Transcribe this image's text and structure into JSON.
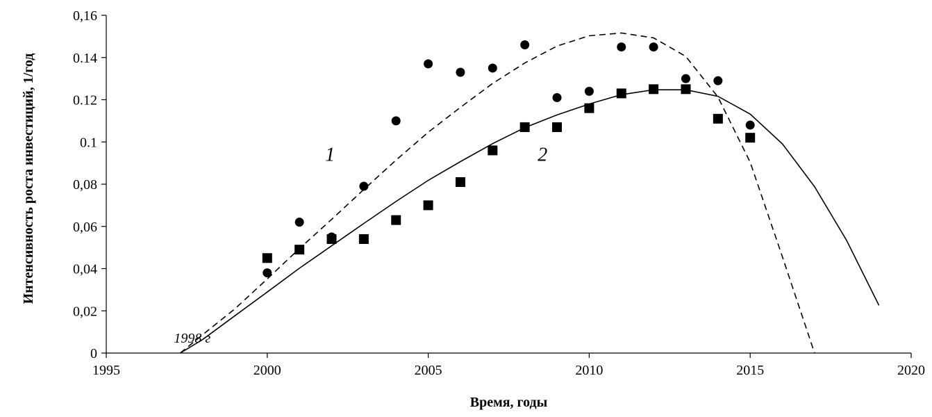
{
  "chart_data": {
    "type": "scatter",
    "xlabel": "Время, годы",
    "ylabel": "Интенсивность роста инвестиций, 1/год",
    "xlim": [
      1995,
      2020
    ],
    "ylim": [
      0,
      0.16
    ],
    "x_ticks": [
      1995,
      2000,
      2005,
      2010,
      2015,
      2020
    ],
    "x_tick_labels": [
      "1995",
      "2000",
      "2005",
      "2010",
      "2015",
      "2020"
    ],
    "y_ticks": [
      0,
      0.02,
      0.04,
      0.06,
      0.08,
      0.1,
      0.12,
      0.14,
      0.16
    ],
    "y_tick_labels": [
      "0",
      "0,02",
      "0,04",
      "0,06",
      "0,08",
      "0.1",
      "0.12",
      "0.14",
      "0,16"
    ],
    "grid": false,
    "legend": "none",
    "series": [
      {
        "marker": "circle",
        "color": "#000000",
        "points": [
          {
            "x": 2000,
            "y": 0.038
          },
          {
            "x": 2001,
            "y": 0.062
          },
          {
            "x": 2002,
            "y": 0.055
          },
          {
            "x": 2003,
            "y": 0.079
          },
          {
            "x": 2004,
            "y": 0.11
          },
          {
            "x": 2005,
            "y": 0.137
          },
          {
            "x": 2006,
            "y": 0.133
          },
          {
            "x": 2007,
            "y": 0.135
          },
          {
            "x": 2008,
            "y": 0.146
          },
          {
            "x": 2009,
            "y": 0.121
          },
          {
            "x": 2010,
            "y": 0.124
          },
          {
            "x": 2011,
            "y": 0.145
          },
          {
            "x": 2012,
            "y": 0.145
          },
          {
            "x": 2013,
            "y": 0.13
          },
          {
            "x": 2014,
            "y": 0.129
          },
          {
            "x": 2015,
            "y": 0.108
          }
        ]
      },
      {
        "marker": "square",
        "color": "#000000",
        "points": [
          {
            "x": 2000,
            "y": 0.045
          },
          {
            "x": 2001,
            "y": 0.049
          },
          {
            "x": 2002,
            "y": 0.054
          },
          {
            "x": 2003,
            "y": 0.054
          },
          {
            "x": 2004,
            "y": 0.063
          },
          {
            "x": 2005,
            "y": 0.07
          },
          {
            "x": 2006,
            "y": 0.081
          },
          {
            "x": 2007,
            "y": 0.096
          },
          {
            "x": 2008,
            "y": 0.107
          },
          {
            "x": 2009,
            "y": 0.107
          },
          {
            "x": 2010,
            "y": 0.116
          },
          {
            "x": 2011,
            "y": 0.123
          },
          {
            "x": 2012,
            "y": 0.125
          },
          {
            "x": 2013,
            "y": 0.125
          },
          {
            "x": 2014,
            "y": 0.111
          },
          {
            "x": 2015,
            "y": 0.102
          }
        ]
      }
    ],
    "curves": [
      {
        "label": "1",
        "style": "dashed",
        "color": "#000000",
        "points": [
          {
            "x": 1997.3,
            "y": 0
          },
          {
            "x": 1998,
            "y": 0.0088
          },
          {
            "x": 1999,
            "y": 0.021
          },
          {
            "x": 2000,
            "y": 0.0351
          },
          {
            "x": 2001,
            "y": 0.0495
          },
          {
            "x": 2002,
            "y": 0.0633
          },
          {
            "x": 2003,
            "y": 0.0775
          },
          {
            "x": 2004,
            "y": 0.0914
          },
          {
            "x": 2005,
            "y": 0.1046
          },
          {
            "x": 2006,
            "y": 0.1164
          },
          {
            "x": 2007,
            "y": 0.1277
          },
          {
            "x": 2008,
            "y": 0.1374
          },
          {
            "x": 2009,
            "y": 0.1454
          },
          {
            "x": 2010,
            "y": 0.1503
          },
          {
            "x": 2011,
            "y": 0.1516
          },
          {
            "x": 2012,
            "y": 0.1493
          },
          {
            "x": 2013,
            "y": 0.1405
          },
          {
            "x": 2014,
            "y": 0.1213
          },
          {
            "x": 2015,
            "y": 0.0904
          },
          {
            "x": 2016,
            "y": 0.0456
          },
          {
            "x": 2017,
            "y": 0
          }
        ]
      },
      {
        "label": "2",
        "style": "solid",
        "color": "#000000",
        "points": [
          {
            "x": 1997.3,
            "y": 0
          },
          {
            "x": 1998,
            "y": 0.0065
          },
          {
            "x": 1999,
            "y": 0.0177
          },
          {
            "x": 2000,
            "y": 0.0289
          },
          {
            "x": 2001,
            "y": 0.0402
          },
          {
            "x": 2002,
            "y": 0.0508
          },
          {
            "x": 2003,
            "y": 0.0614
          },
          {
            "x": 2004,
            "y": 0.0718
          },
          {
            "x": 2005,
            "y": 0.0818
          },
          {
            "x": 2006,
            "y": 0.0907
          },
          {
            "x": 2007,
            "y": 0.0992
          },
          {
            "x": 2008,
            "y": 0.1068
          },
          {
            "x": 2009,
            "y": 0.1128
          },
          {
            "x": 2010,
            "y": 0.118
          },
          {
            "x": 2011,
            "y": 0.1224
          },
          {
            "x": 2012,
            "y": 0.1247
          },
          {
            "x": 2013,
            "y": 0.1247
          },
          {
            "x": 2014,
            "y": 0.1216
          },
          {
            "x": 2015,
            "y": 0.1132
          },
          {
            "x": 2016,
            "y": 0.0991
          },
          {
            "x": 2017,
            "y": 0.0788
          },
          {
            "x": 2018,
            "y": 0.0532
          },
          {
            "x": 2019,
            "y": 0.0226
          }
        ]
      }
    ],
    "annotations": [
      {
        "text": "1",
        "x": 2001.8,
        "y": 0.091,
        "size": 28
      },
      {
        "text": "2",
        "x": 2008.4,
        "y": 0.091,
        "size": 28
      },
      {
        "text": "1998 г",
        "x": 1997.1,
        "y": 0.005,
        "size": 20
      }
    ]
  }
}
